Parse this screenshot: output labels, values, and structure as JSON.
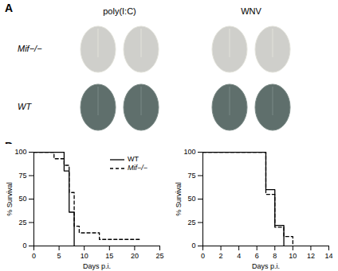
{
  "panel_a": {
    "label": "A",
    "columns": [
      "poly(I:C)",
      "WNV"
    ],
    "rows": [
      "Mif−/−",
      "WT"
    ]
  },
  "panel_b_label": "B",
  "chart_data": [
    {
      "type": "line",
      "xlabel": "Days p.i.",
      "ylabel": "% Survival",
      "xlim": [
        0,
        25
      ],
      "xticks": [
        0,
        5,
        10,
        15,
        20,
        25
      ],
      "ylim": [
        0,
        100
      ],
      "yticks": [
        0,
        25,
        50,
        75,
        100
      ],
      "legend": "upper right",
      "series": [
        {
          "name": "WT",
          "color": "#000000",
          "line_style": "solid",
          "x": [
            0,
            6,
            7,
            8
          ],
          "values": [
            100,
            80,
            36,
            0
          ]
        },
        {
          "name": "Mif−/−",
          "color": "#000000",
          "line_style": "dashed",
          "x": [
            0,
            4,
            6,
            7,
            8,
            9,
            13,
            21
          ],
          "values": [
            100,
            93,
            86,
            57,
            21,
            14,
            7,
            7
          ]
        }
      ]
    },
    {
      "type": "line",
      "xlabel": "Days p.i.",
      "ylabel": "% Survival",
      "xlim": [
        0,
        14
      ],
      "xticks": [
        0,
        2,
        4,
        6,
        8,
        10,
        12,
        14
      ],
      "ylim": [
        0,
        100
      ],
      "yticks": [
        0,
        25,
        50,
        75,
        100
      ],
      "series": [
        {
          "name": "WT",
          "color": "#000000",
          "line_style": "solid",
          "x": [
            0,
            7,
            8,
            9
          ],
          "values": [
            100,
            60,
            22,
            0
          ]
        },
        {
          "name": "Mif−/−",
          "color": "#000000",
          "line_style": "dashed",
          "x": [
            0,
            7,
            8,
            9,
            10
          ],
          "values": [
            100,
            55,
            20,
            10,
            0
          ]
        }
      ]
    }
  ]
}
